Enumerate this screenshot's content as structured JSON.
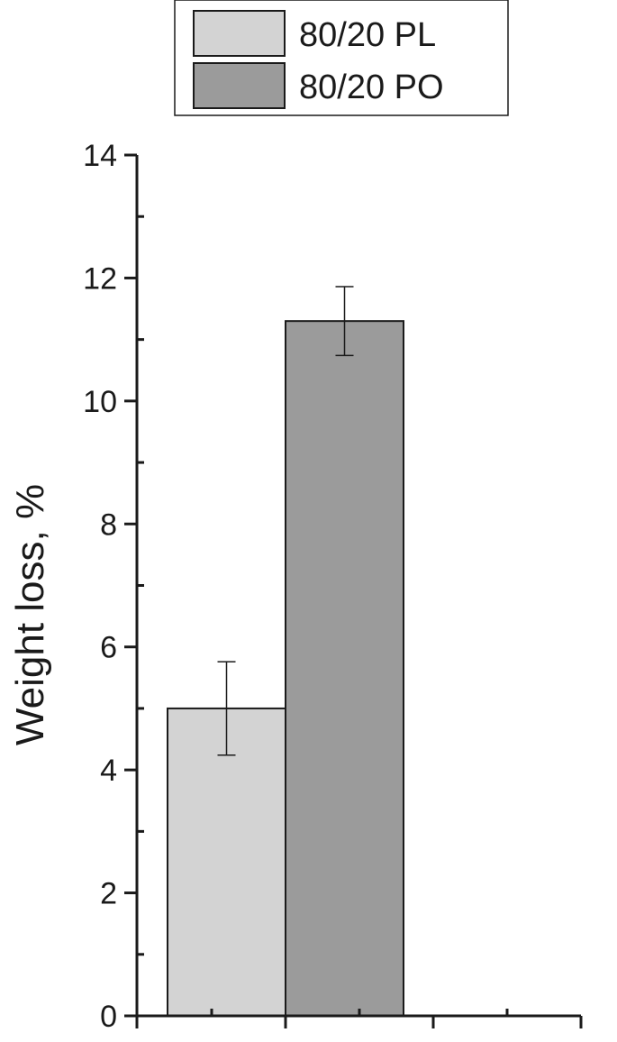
{
  "chart_data": {
    "type": "bar",
    "title": "",
    "xlabel": "",
    "ylabel": "Weight loss, %",
    "ylim": [
      0,
      14
    ],
    "yticks": [
      0,
      2,
      4,
      6,
      8,
      10,
      12,
      14
    ],
    "ytick_labels": [
      "0",
      "2",
      "4",
      "6",
      "8",
      "10",
      "12",
      "14"
    ],
    "grid": false,
    "legend_position": "top",
    "series": [
      {
        "name": "80/20 PL",
        "value": 5.0,
        "error": 0.76,
        "color": "#d3d3d3"
      },
      {
        "name": "80/20 PO",
        "value": 11.3,
        "error": 0.56,
        "color": "#9b9b9b"
      }
    ]
  }
}
